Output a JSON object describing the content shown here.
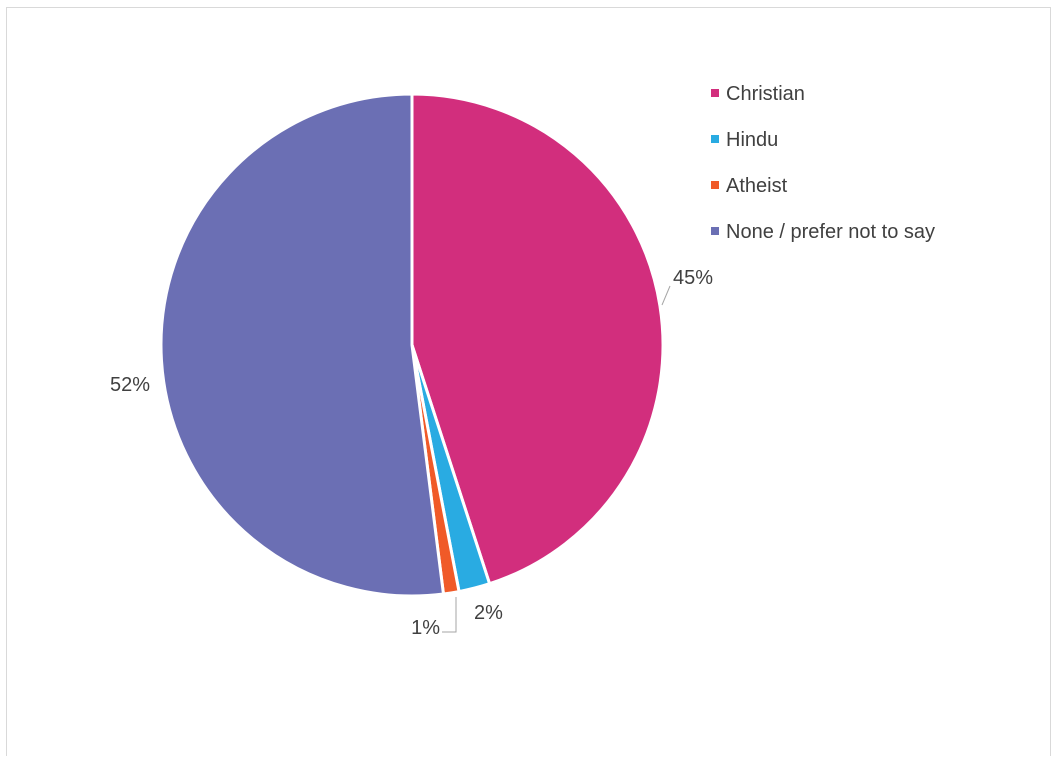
{
  "chart_data": {
    "type": "pie",
    "slices": [
      {
        "label": "Christian",
        "value": 45,
        "display": "45%",
        "color": "#d22e7d"
      },
      {
        "label": "Hindu",
        "value": 2,
        "display": "2%",
        "color": "#29abe2"
      },
      {
        "label": "Atheist",
        "value": 1,
        "display": "1%",
        "color": "#f05a28"
      },
      {
        "label": "None / prefer not to say",
        "value": 52,
        "display": "52%",
        "color": "#6b6fb4"
      }
    ],
    "legend_position": "right",
    "start_angle_deg": 0,
    "direction": "clockwise"
  }
}
